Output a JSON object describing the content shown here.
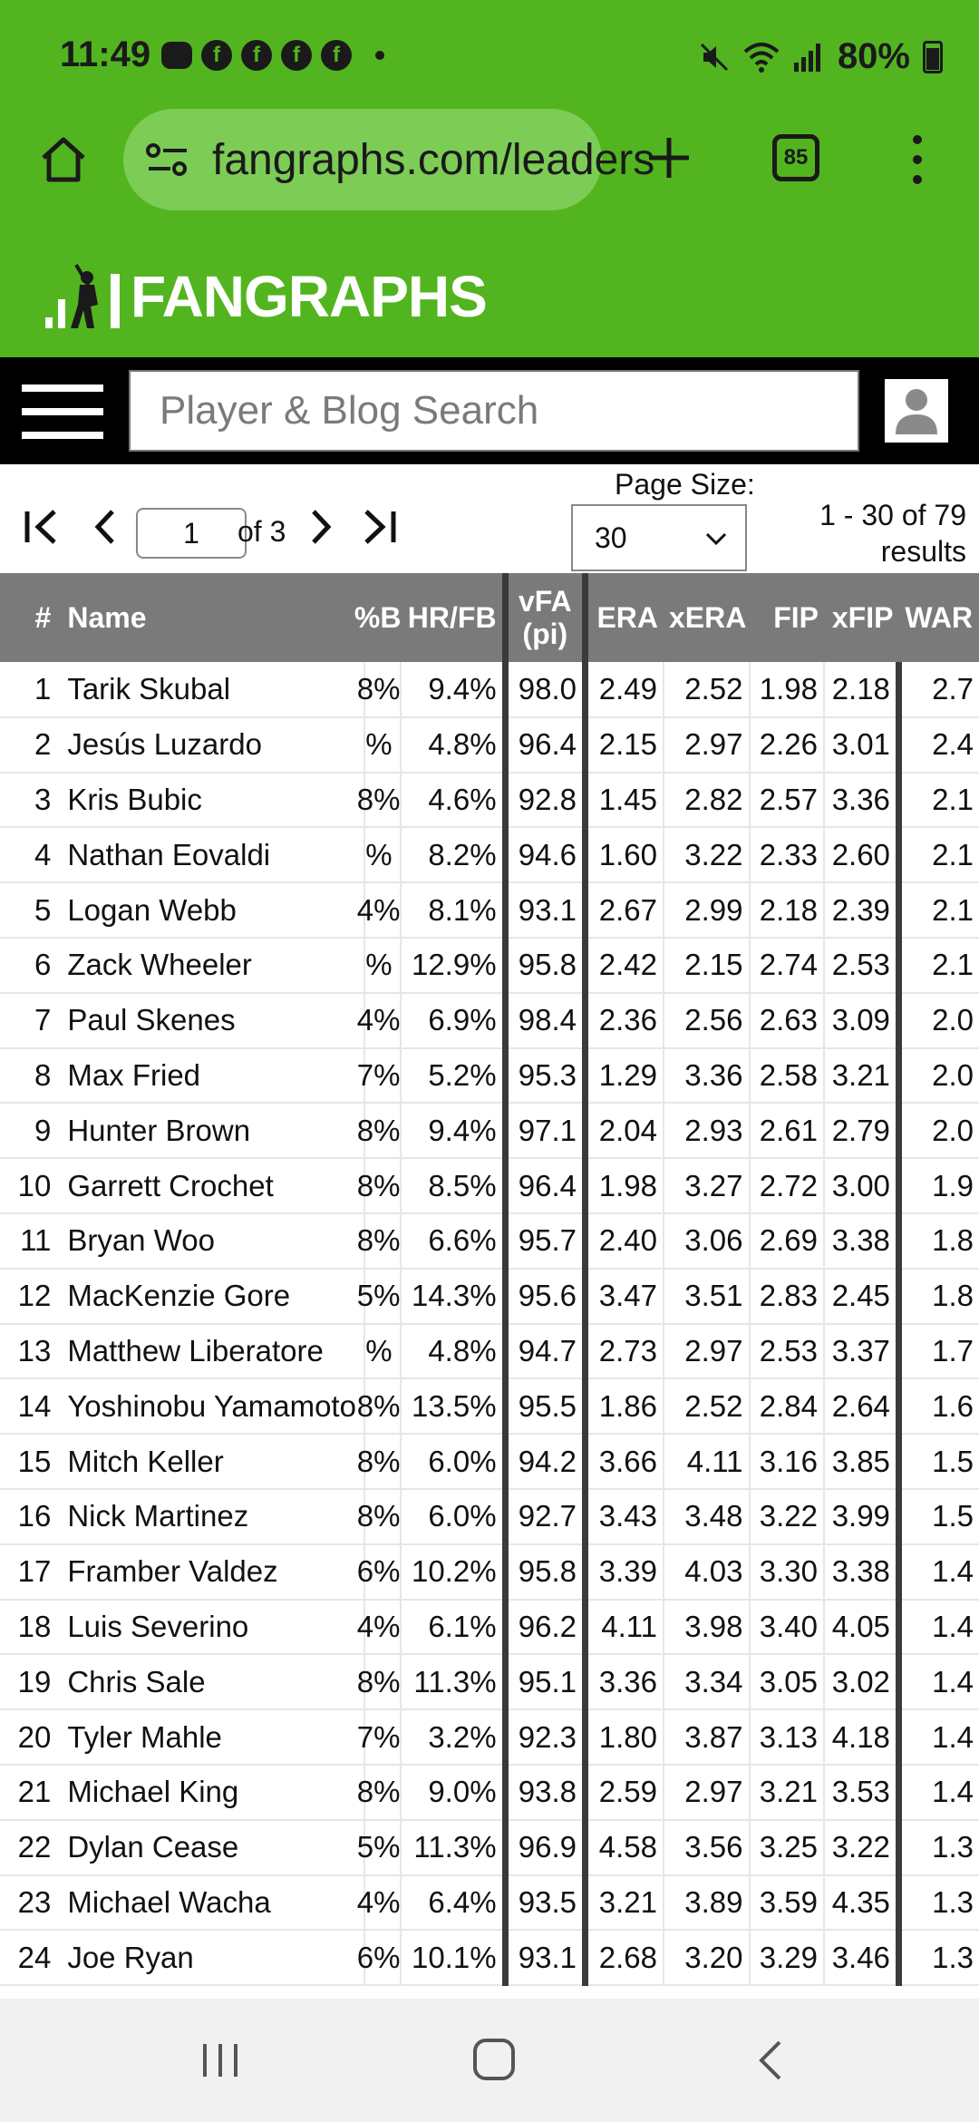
{
  "status_bar": {
    "time": "11:49",
    "battery": "80%",
    "notification_icons": [
      "chat-icon",
      "facebook-icon",
      "facebook-icon",
      "facebook-icon",
      "facebook-icon",
      "dot-icon"
    ],
    "system_icons": [
      "mute-icon",
      "wifi-icon",
      "signal-icon",
      "battery-icon"
    ],
    "notif_letter": "f"
  },
  "browser": {
    "url": "fangraphs.com/leaders",
    "tab_count": "85"
  },
  "site": {
    "logo_text": "FANGRAPHS",
    "brand_color": "#52b51f"
  },
  "search": {
    "placeholder": "Player & Blog Search"
  },
  "pagination": {
    "current_page": "1",
    "of_label": "of 3",
    "page_size_label": "Page Size:",
    "page_size_value": "30",
    "results_label": "1 - 30 of 79 results"
  },
  "table": {
    "headers": {
      "num": "#",
      "name": "Name",
      "pct": "B%",
      "hrfb": "HR/FB",
      "vfa_line1": "vFA",
      "vfa_line2": "(pi)",
      "era": "ERA",
      "xera": "xERA",
      "fip": "FIP",
      "xfip": "xFIP",
      "war": "WAR"
    },
    "rows": [
      {
        "num": "1",
        "name": "Tarik Skubal",
        "pct": "8%",
        "hrfb": "9.4%",
        "vfa": "98.0",
        "era": "2.49",
        "xera": "2.52",
        "fip": "1.98",
        "xfip": "2.18",
        "war": "2.7"
      },
      {
        "num": "2",
        "name": "Jesús Luzardo",
        "pct": "%",
        "hrfb": "4.8%",
        "vfa": "96.4",
        "era": "2.15",
        "xera": "2.97",
        "fip": "2.26",
        "xfip": "3.01",
        "war": "2.4"
      },
      {
        "num": "3",
        "name": "Kris Bubic",
        "pct": "8%",
        "hrfb": "4.6%",
        "vfa": "92.8",
        "era": "1.45",
        "xera": "2.82",
        "fip": "2.57",
        "xfip": "3.36",
        "war": "2.1"
      },
      {
        "num": "4",
        "name": "Nathan Eovaldi",
        "pct": "%",
        "hrfb": "8.2%",
        "vfa": "94.6",
        "era": "1.60",
        "xera": "3.22",
        "fip": "2.33",
        "xfip": "2.60",
        "war": "2.1"
      },
      {
        "num": "5",
        "name": "Logan Webb",
        "pct": "4%",
        "hrfb": "8.1%",
        "vfa": "93.1",
        "era": "2.67",
        "xera": "2.99",
        "fip": "2.18",
        "xfip": "2.39",
        "war": "2.1"
      },
      {
        "num": "6",
        "name": "Zack Wheeler",
        "pct": "%",
        "hrfb": "12.9%",
        "vfa": "95.8",
        "era": "2.42",
        "xera": "2.15",
        "fip": "2.74",
        "xfip": "2.53",
        "war": "2.1"
      },
      {
        "num": "7",
        "name": "Paul Skenes",
        "pct": "4%",
        "hrfb": "6.9%",
        "vfa": "98.4",
        "era": "2.36",
        "xera": "2.56",
        "fip": "2.63",
        "xfip": "3.09",
        "war": "2.0"
      },
      {
        "num": "8",
        "name": "Max Fried",
        "pct": "7%",
        "hrfb": "5.2%",
        "vfa": "95.3",
        "era": "1.29",
        "xera": "3.36",
        "fip": "2.58",
        "xfip": "3.21",
        "war": "2.0"
      },
      {
        "num": "9",
        "name": "Hunter Brown",
        "pct": "8%",
        "hrfb": "9.4%",
        "vfa": "97.1",
        "era": "2.04",
        "xera": "2.93",
        "fip": "2.61",
        "xfip": "2.79",
        "war": "2.0"
      },
      {
        "num": "10",
        "name": "Garrett Crochet",
        "pct": "8%",
        "hrfb": "8.5%",
        "vfa": "96.4",
        "era": "1.98",
        "xera": "3.27",
        "fip": "2.72",
        "xfip": "3.00",
        "war": "1.9"
      },
      {
        "num": "11",
        "name": "Bryan Woo",
        "pct": "8%",
        "hrfb": "6.6%",
        "vfa": "95.7",
        "era": "2.40",
        "xera": "3.06",
        "fip": "2.69",
        "xfip": "3.38",
        "war": "1.8"
      },
      {
        "num": "12",
        "name": "MacKenzie Gore",
        "pct": "5%",
        "hrfb": "14.3%",
        "vfa": "95.6",
        "era": "3.47",
        "xera": "3.51",
        "fip": "2.83",
        "xfip": "2.45",
        "war": "1.8"
      },
      {
        "num": "13",
        "name": "Matthew Liberatore",
        "pct": "%",
        "hrfb": "4.8%",
        "vfa": "94.7",
        "era": "2.73",
        "xera": "2.97",
        "fip": "2.53",
        "xfip": "3.37",
        "war": "1.7"
      },
      {
        "num": "14",
        "name": "Yoshinobu Yamamoto",
        "pct": "8%",
        "hrfb": "13.5%",
        "vfa": "95.5",
        "era": "1.86",
        "xera": "2.52",
        "fip": "2.84",
        "xfip": "2.64",
        "war": "1.6"
      },
      {
        "num": "15",
        "name": "Mitch Keller",
        "pct": "8%",
        "hrfb": "6.0%",
        "vfa": "94.2",
        "era": "3.66",
        "xera": "4.11",
        "fip": "3.16",
        "xfip": "3.85",
        "war": "1.5"
      },
      {
        "num": "16",
        "name": "Nick Martinez",
        "pct": "8%",
        "hrfb": "6.0%",
        "vfa": "92.7",
        "era": "3.43",
        "xera": "3.48",
        "fip": "3.22",
        "xfip": "3.99",
        "war": "1.5"
      },
      {
        "num": "17",
        "name": "Framber Valdez",
        "pct": "6%",
        "hrfb": "10.2%",
        "vfa": "95.8",
        "era": "3.39",
        "xera": "4.03",
        "fip": "3.30",
        "xfip": "3.38",
        "war": "1.4"
      },
      {
        "num": "18",
        "name": "Luis Severino",
        "pct": "4%",
        "hrfb": "6.1%",
        "vfa": "96.2",
        "era": "4.11",
        "xera": "3.98",
        "fip": "3.40",
        "xfip": "4.05",
        "war": "1.4"
      },
      {
        "num": "19",
        "name": "Chris Sale",
        "pct": "8%",
        "hrfb": "11.3%",
        "vfa": "95.1",
        "era": "3.36",
        "xera": "3.34",
        "fip": "3.05",
        "xfip": "3.02",
        "war": "1.4"
      },
      {
        "num": "20",
        "name": "Tyler Mahle",
        "pct": "7%",
        "hrfb": "3.2%",
        "vfa": "92.3",
        "era": "1.80",
        "xera": "3.87",
        "fip": "3.13",
        "xfip": "4.18",
        "war": "1.4"
      },
      {
        "num": "21",
        "name": "Michael King",
        "pct": "8%",
        "hrfb": "9.0%",
        "vfa": "93.8",
        "era": "2.59",
        "xera": "2.97",
        "fip": "3.21",
        "xfip": "3.53",
        "war": "1.4"
      },
      {
        "num": "22",
        "name": "Dylan Cease",
        "pct": "5%",
        "hrfb": "11.3%",
        "vfa": "96.9",
        "era": "4.58",
        "xera": "3.56",
        "fip": "3.25",
        "xfip": "3.22",
        "war": "1.3"
      },
      {
        "num": "23",
        "name": "Michael Wacha",
        "pct": "4%",
        "hrfb": "6.4%",
        "vfa": "93.5",
        "era": "3.21",
        "xera": "3.89",
        "fip": "3.59",
        "xfip": "4.35",
        "war": "1.3"
      },
      {
        "num": "24",
        "name": "Joe Ryan",
        "pct": "6%",
        "hrfb": "10.1%",
        "vfa": "93.1",
        "era": "2.68",
        "xera": "3.20",
        "fip": "3.29",
        "xfip": "3.46",
        "war": "1.3"
      }
    ]
  },
  "nav_bar": {
    "icons": [
      "recent-apps-icon",
      "home-icon",
      "back-icon"
    ]
  }
}
